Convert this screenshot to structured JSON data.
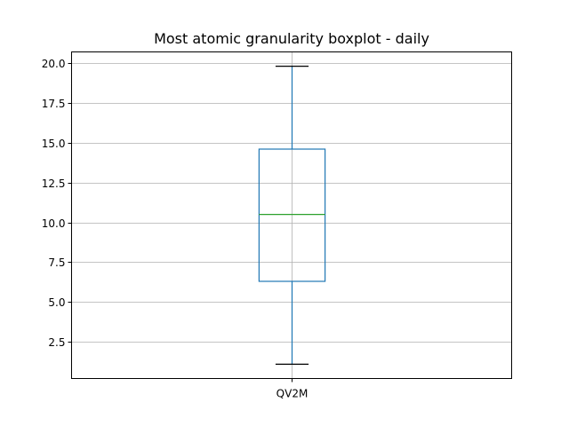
{
  "chart_data": {
    "type": "box",
    "title": "Most atomic granularity boxplot - daily",
    "categories": [
      "QV2M"
    ],
    "series": [
      {
        "whisker_low": 1.1,
        "q1": 6.3,
        "median": 10.5,
        "q3": 14.6,
        "whisker_high": 19.8
      }
    ],
    "xlabel": "",
    "ylabel": "",
    "ylim": [
      0.2,
      20.7
    ],
    "yticks": [
      2.5,
      5.0,
      7.5,
      10.0,
      12.5,
      15.0,
      17.5,
      20.0
    ],
    "ytick_labels": [
      "2.5",
      "5.0",
      "7.5",
      "10.0",
      "12.5",
      "15.0",
      "17.5",
      "20.0"
    ],
    "grid": true,
    "colors": {
      "box": "#1f77b4",
      "median": "#2ca02c",
      "whisker_cap": "#000000",
      "grid": "#b0b0b0",
      "axes": "#000000"
    }
  }
}
